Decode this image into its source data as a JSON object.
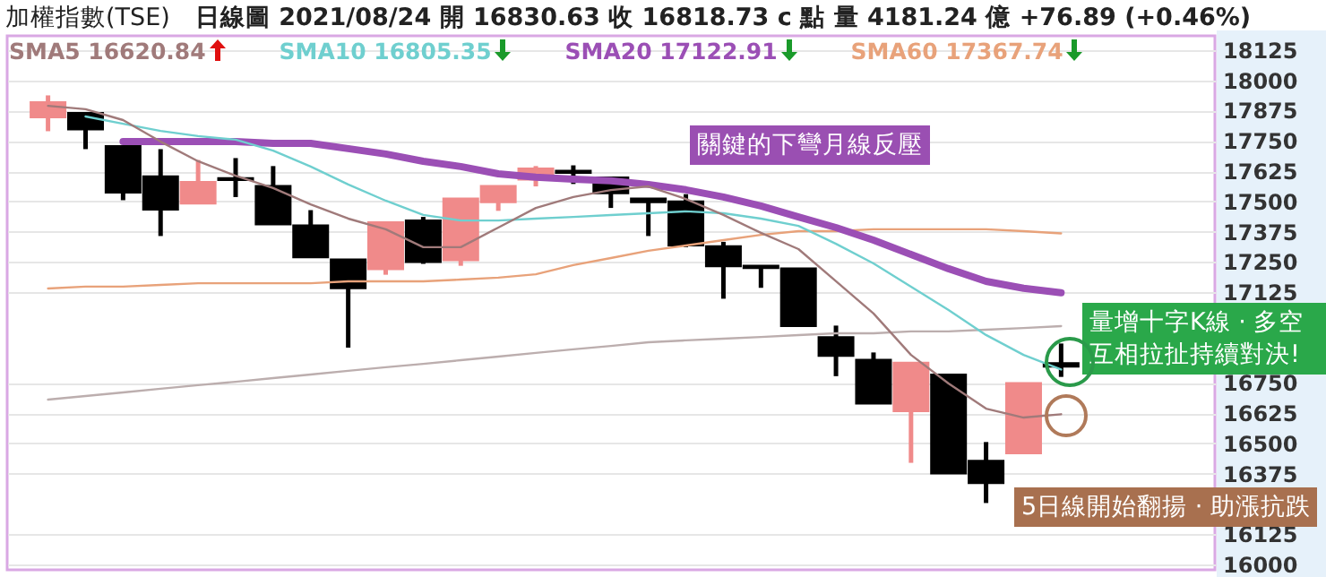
{
  "chart_data": {
    "type": "candlestick",
    "title": "加權指數(TSE)",
    "subtitle": "日線圖 2021/08/24 開 16830.63 收 16818.73 c 點 量 4181.24 億 +76.89 (+0.46%)",
    "categories": [
      null,
      null,
      null,
      null,
      null,
      null,
      null,
      null,
      null,
      null,
      null,
      null,
      null,
      null,
      null,
      null,
      null,
      null,
      null,
      null,
      null,
      null,
      null,
      null,
      null,
      null,
      null,
      null
    ],
    "ohlc": [
      [
        17849,
        17938,
        17790,
        17908
      ],
      [
        17864,
        17866,
        17716,
        17799
      ],
      [
        17727,
        17727,
        17505,
        17538
      ],
      [
        17602,
        17716,
        17357,
        17468
      ],
      [
        17493,
        17671,
        17493,
        17579
      ],
      [
        17595,
        17679,
        17518,
        17590
      ],
      [
        17562,
        17646,
        17407,
        17407
      ],
      [
        17399,
        17464,
        17271,
        17271
      ],
      [
        17259,
        17259,
        16896,
        17143
      ],
      [
        17222,
        17412,
        17197,
        17412
      ],
      [
        17420,
        17436,
        17242,
        17251
      ],
      [
        17259,
        17510,
        17234,
        17510
      ],
      [
        17498,
        17562,
        17461,
        17562
      ],
      [
        17592,
        17646,
        17562,
        17634
      ],
      [
        17625,
        17649,
        17572,
        17620
      ],
      [
        17597,
        17597,
        17473,
        17535
      ],
      [
        17510,
        17510,
        17357,
        17498
      ],
      [
        17498,
        17530,
        17311,
        17320
      ],
      [
        17313,
        17333,
        17098,
        17234
      ],
      [
        17233,
        17233,
        17143,
        17226
      ],
      [
        17222,
        17222,
        16987,
        16987
      ],
      [
        16938,
        16987,
        16778,
        16864
      ],
      [
        16844,
        16876,
        16666,
        16666
      ],
      [
        16635,
        16832,
        16420,
        16832
      ],
      [
        16783,
        16783,
        16378,
        16378
      ],
      [
        16427,
        16506,
        16254,
        16338
      ],
      [
        16461,
        16748,
        16461,
        16748
      ],
      [
        16830.63,
        16913,
        16775,
        16818.73
      ]
    ],
    "colors": [
      "#f08a8a",
      "#000000",
      "#000000",
      "#000000",
      "#f08a8a",
      "#000000",
      "#000000",
      "#000000",
      "#000000",
      "#f08a8a",
      "#000000",
      "#f08a8a",
      "#f08a8a",
      "#f08a8a",
      "#000000",
      "#000000",
      "#000000",
      "#000000",
      "#000000",
      "#000000",
      "#000000",
      "#000000",
      "#000000",
      "#f08a8a",
      "#000000",
      "#000000",
      "#f08a8a",
      "#000000"
    ],
    "series": [
      {
        "type": "line",
        "name": "SMA5 16620.84",
        "color": "#a07a7a",
        "values": [
          17895,
          17881,
          17836,
          17747,
          17666,
          17606,
          17555,
          17488,
          17429,
          17385,
          17311,
          17311,
          17392,
          17473,
          17518,
          17547,
          17562,
          17510,
          17444,
          17370,
          17303,
          17170,
          17037,
          16866,
          16748,
          16644,
          16607,
          16620.84
        ]
      },
      {
        "type": "line",
        "name": "SMA10 16805.35",
        "color": "#6fcfcf",
        "values": [
          null,
          17851,
          17821,
          17791,
          17770,
          17755,
          17710,
          17644,
          17570,
          17503,
          17444,
          17421,
          17421,
          17429,
          17436,
          17444,
          17451,
          17459,
          17451,
          17429,
          17399,
          17325,
          17244,
          17148,
          17051,
          16948,
          16866,
          16805.35
        ]
      },
      {
        "type": "line",
        "name": "SMA20 17122.91",
        "color": "#9b4fb5",
        "values": [
          null,
          null,
          17747,
          17747,
          17747,
          17747,
          17740,
          17740,
          17718,
          17696,
          17666,
          17644,
          17614,
          17600,
          17592,
          17585,
          17570,
          17548,
          17518,
          17481,
          17436,
          17392,
          17340,
          17281,
          17222,
          17170,
          17141,
          17122.91
        ]
      },
      {
        "type": "line",
        "name": "SMA60 17367.74",
        "color": "#e8a27a",
        "values": [
          17140,
          17148,
          17148,
          17155,
          17162,
          17162,
          17162,
          17162,
          17170,
          17170,
          17170,
          17177,
          17185,
          17199,
          17237,
          17266,
          17296,
          17318,
          17340,
          17362,
          17377,
          17377,
          17385,
          17385,
          17385,
          17385,
          17377,
          17367.74
        ]
      },
      {
        "type": "line",
        "color": "#bcaeae",
        "values": [
          16681,
          16696,
          16711,
          16726,
          16741,
          16755,
          16770,
          16785,
          16800,
          16815,
          16829,
          16844,
          16859,
          16874,
          16889,
          16903,
          16918,
          16926,
          16933,
          16940,
          16948,
          16955,
          16955,
          16963,
          16963,
          16970,
          16977,
          16985
        ]
      }
    ],
    "ylim": [
      15978,
      18184
    ],
    "yticks": [
      16000,
      16125,
      16375,
      16500,
      16625,
      16750,
      17125,
      17250,
      17375,
      17500,
      17625,
      17750,
      17875,
      18000,
      18125
    ],
    "tick_labels": "y",
    "grid": "y",
    "legend": "top left",
    "annotations": [
      "關鍵的下彎月線反壓",
      "量增十字K線 · 多空互相拉扯持續對決!",
      "5日線開始翻揚 · 助漲抗跌"
    ]
  }
}
